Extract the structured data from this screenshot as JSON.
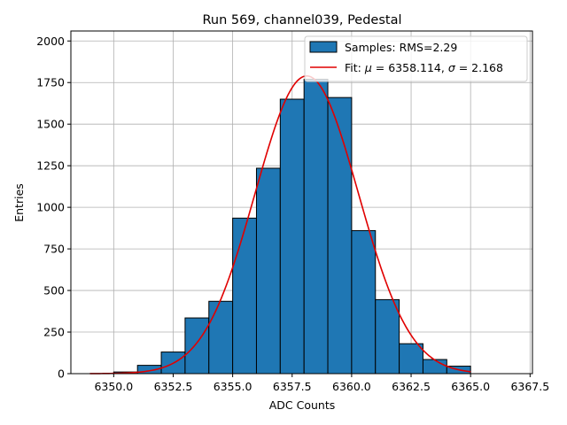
{
  "chart_data": {
    "type": "bar",
    "title": "Run 569, channel039, Pedestal",
    "xlabel": "ADC Counts",
    "ylabel": "Entries",
    "xlim": [
      6348.2,
      6367.6
    ],
    "ylim": [
      0,
      2060
    ],
    "grid": true,
    "legend_placement": "top-right",
    "x_ticks": [
      6350.0,
      6352.5,
      6355.0,
      6357.5,
      6360.0,
      6362.5,
      6365.0,
      6367.5
    ],
    "x_tick_labels": [
      "6350.0",
      "6352.5",
      "6355.0",
      "6357.5",
      "6360.0",
      "6362.5",
      "6365.0",
      "6367.5"
    ],
    "y_ticks": [
      0,
      250,
      500,
      750,
      1000,
      1250,
      1500,
      1750,
      2000
    ],
    "y_tick_labels": [
      "0",
      "250",
      "500",
      "750",
      "1000",
      "1250",
      "1500",
      "1750",
      "2000"
    ],
    "histogram": {
      "name": "Samples: RMS=2.29",
      "color": "#1f77b4",
      "edge_color": "#000000",
      "bins": [
        {
          "x0": 6350,
          "x1": 6351,
          "count": 10
        },
        {
          "x0": 6351,
          "x1": 6352,
          "count": 50
        },
        {
          "x0": 6352,
          "x1": 6353,
          "count": 130
        },
        {
          "x0": 6353,
          "x1": 6354,
          "count": 335
        },
        {
          "x0": 6354,
          "x1": 6355,
          "count": 435
        },
        {
          "x0": 6355,
          "x1": 6356,
          "count": 935
        },
        {
          "x0": 6356,
          "x1": 6357,
          "count": 1235
        },
        {
          "x0": 6357,
          "x1": 6358,
          "count": 1650
        },
        {
          "x0": 6358,
          "x1": 6359,
          "count": 1770
        },
        {
          "x0": 6359,
          "x1": 6360,
          "count": 1660
        },
        {
          "x0": 6360,
          "x1": 6361,
          "count": 860
        },
        {
          "x0": 6361,
          "x1": 6362,
          "count": 445
        },
        {
          "x0": 6362,
          "x1": 6363,
          "count": 180
        },
        {
          "x0": 6363,
          "x1": 6364,
          "count": 85
        },
        {
          "x0": 6364,
          "x1": 6365,
          "count": 45
        }
      ]
    },
    "fit": {
      "name_prefix": "Fit: ",
      "name_mu": "μ",
      "name_mid": " = 6358.114, ",
      "name_sigma": "σ",
      "name_suffix": " = 2.168",
      "color": "#e00000",
      "mu": 6358.114,
      "sigma": 2.168,
      "amplitude": 1790,
      "x_range": [
        6349,
        6365
      ]
    }
  }
}
